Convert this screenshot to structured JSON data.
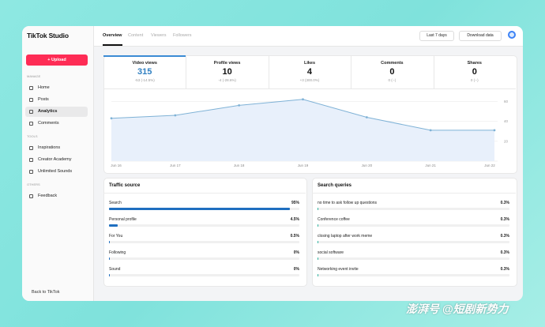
{
  "sidebar": {
    "brand": "TikTok Studio",
    "upload": "+ Upload",
    "sections": [
      {
        "title": "MANAGE",
        "items": [
          "Home",
          "Posts",
          "Analytics",
          "Comments"
        ]
      },
      {
        "title": "TOOLS",
        "items": [
          "Inspirations",
          "Creator Academy",
          "Unlimited Sounds"
        ]
      },
      {
        "title": "OTHERS",
        "items": [
          "Feedback"
        ]
      }
    ],
    "back": "Back to TikTok"
  },
  "header": {
    "tabs": [
      "Overview",
      "Content",
      "Viewers",
      "Followers"
    ],
    "range": "Last 7 days",
    "download": "Download data"
  },
  "metrics": [
    {
      "label": "Video views",
      "value": 315,
      "change": "-53 (-14.5%)"
    },
    {
      "label": "Profile views",
      "value": 10,
      "change": "-4 (-28.6%)"
    },
    {
      "label": "Likes",
      "value": 4,
      "change": "+3 (300.0%)"
    },
    {
      "label": "Comments",
      "value": 0,
      "change": "0 (--)"
    },
    {
      "label": "Shares",
      "value": 0,
      "change": "0 (--)"
    }
  ],
  "chart_data": {
    "type": "line",
    "x": [
      "Jun 16",
      "Jun 17",
      "Jun 18",
      "Jun 19",
      "Jun 20",
      "Jun 21",
      "Jun 22"
    ],
    "values": [
      43,
      46,
      56,
      62,
      44,
      31,
      31
    ],
    "color": "#7fb2d6",
    "ylim": [
      0,
      65
    ],
    "yticks": [
      20,
      40,
      60
    ],
    "grid": true
  },
  "traffic_source": {
    "title": "Traffic source",
    "rows": [
      {
        "label": "Search",
        "value": 95,
        "value_label": "95%"
      },
      {
        "label": "Personal profile",
        "value": 4.5,
        "value_label": "4.5%"
      },
      {
        "label": "For You",
        "value": 0.5,
        "value_label": "0.5%"
      },
      {
        "label": "Following",
        "value": 0,
        "value_label": "0%"
      },
      {
        "label": "Sound",
        "value": 0,
        "value_label": "0%"
      }
    ],
    "color": "#1f6fc0"
  },
  "search_queries": {
    "title": "Search queries",
    "rows": [
      {
        "label": "no time to ask follow up questions",
        "value": 0.3,
        "value_label": "0.3%"
      },
      {
        "label": "Conference coffee",
        "value": 0.3,
        "value_label": "0.3%"
      },
      {
        "label": "closing laptop after work meme",
        "value": 0.3,
        "value_label": "0.3%"
      },
      {
        "label": "social software",
        "value": 0.3,
        "value_label": "0.3%"
      },
      {
        "label": "Networking event invite",
        "value": 0.3,
        "value_label": "0.3%"
      }
    ],
    "color": "#2bb3a0"
  },
  "watermark": "澎湃号 @短剧新势力"
}
